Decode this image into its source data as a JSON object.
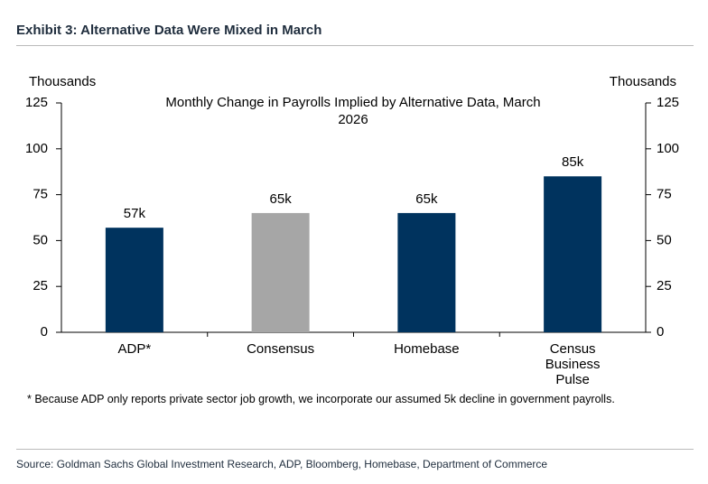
{
  "header": {
    "title": "Exhibit 3: Alternative Data Were Mixed in March"
  },
  "chart_data": {
    "type": "bar",
    "title": "Monthly Change in Payrolls Implied by Alternative Data, March 2026",
    "ylabel": "Thousands",
    "y2label": "Thousands",
    "categories": [
      "ADP*",
      "Consensus",
      "Homebase",
      "Census Business Pulse"
    ],
    "values": [
      57,
      65,
      65,
      85
    ],
    "value_labels": [
      "57k",
      "65k",
      "65k",
      "85k"
    ],
    "colors": [
      "#00335e",
      "#a6a6a6",
      "#00335e",
      "#00335e"
    ],
    "ylim": [
      0,
      125
    ],
    "yticks": [
      0,
      25,
      50,
      75,
      100,
      125
    ],
    "y2lim": [
      0,
      125
    ],
    "y2ticks": [
      0,
      25,
      50,
      75,
      100,
      125
    ]
  },
  "footnote": "* Because ADP only reports private sector job growth, we incorporate our assumed 5k decline in government payrolls.",
  "source": "Source: Goldman Sachs Global Investment Research, ADP, Bloomberg, Homebase, Department of Commerce"
}
